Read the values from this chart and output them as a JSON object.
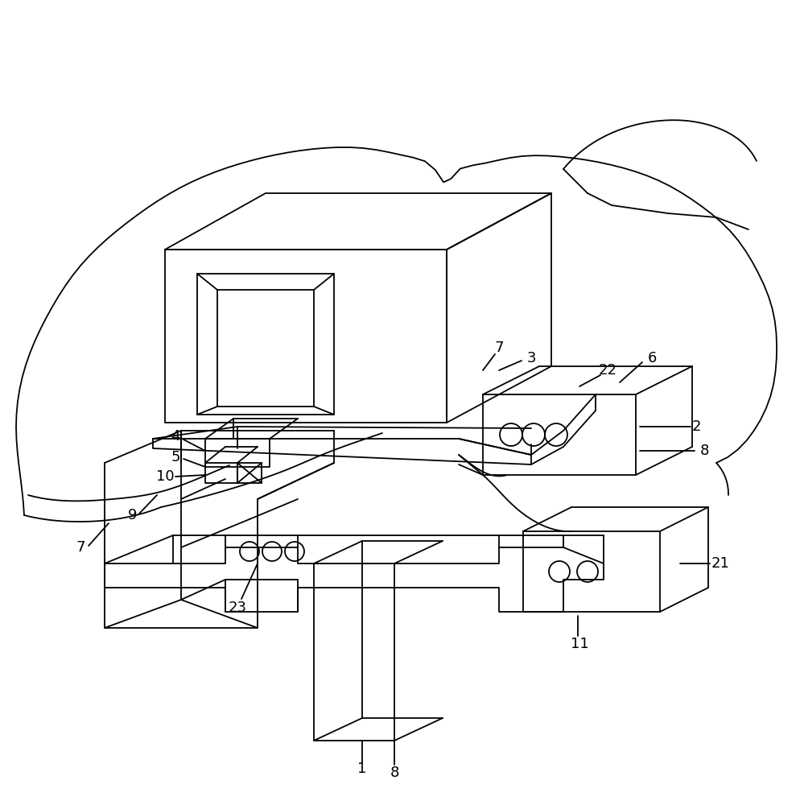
{
  "bg_color": "#ffffff",
  "lc": "#000000",
  "lw": 1.3,
  "fig_w": 9.94,
  "fig_h": 10.0,
  "dpi": 100
}
